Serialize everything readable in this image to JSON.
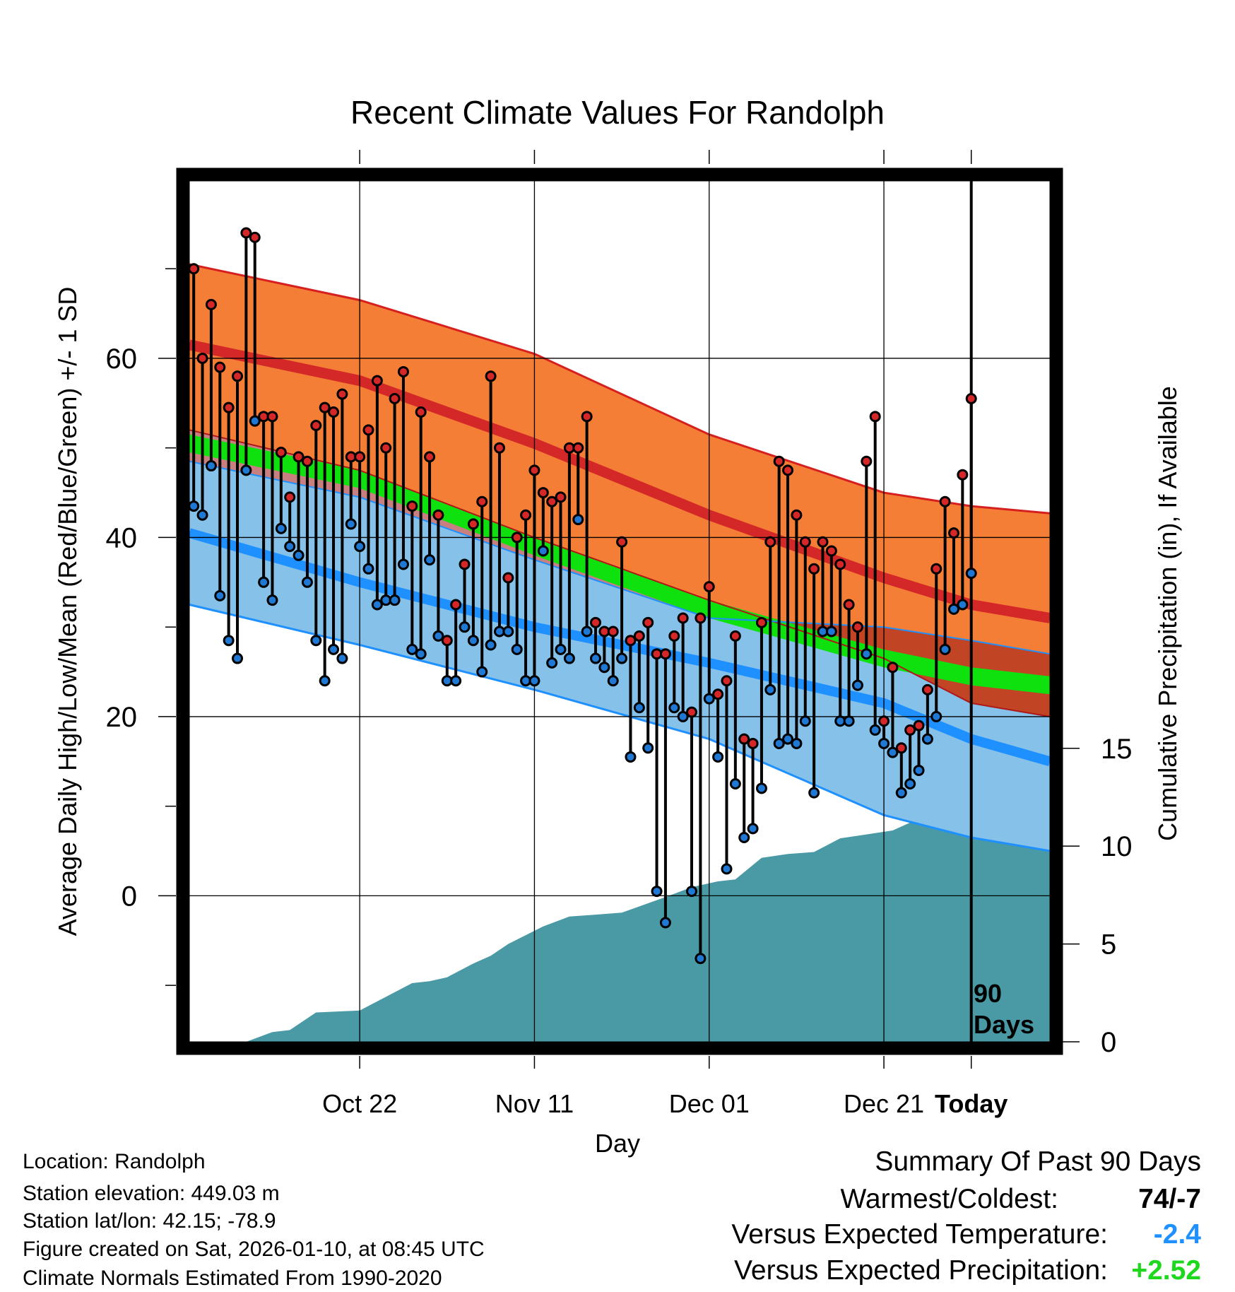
{
  "chart_data": {
    "type": "line",
    "title": "Recent Climate Values For Randolph",
    "xlabel": "Day",
    "ylabel": "Average Daily High/Low/Mean (Red/Blue/Green) +/- 1 SD",
    "y2label": "Cumulative Precipitation (in), If Available",
    "xlim": [
      -89.5,
      9
    ],
    "ylim": [
      -16.3,
      79.8
    ],
    "y2lim": [
      0,
      44
    ],
    "x_ticks": [
      -70,
      -50,
      -30,
      -10,
      0
    ],
    "x_tick_labels": [
      "Oct 22",
      "Nov 11",
      "Dec 01",
      "Dec 21",
      "Today"
    ],
    "y_ticks": [
      0,
      20,
      40,
      60
    ],
    "y_tick_labels": [
      "0",
      "20",
      "40",
      "60"
    ],
    "y2_ticks": [
      0,
      5,
      10,
      15
    ],
    "y2_tick_labels": [
      "0",
      "5",
      "10",
      "15"
    ],
    "today_label": "90 Days",
    "normals": {
      "days": [
        -89.5,
        -70,
        -50,
        -30,
        -10,
        0,
        9
      ],
      "high_upper": [
        70.5,
        66.5,
        60.5,
        51.5,
        45.0,
        43.5,
        42.7
      ],
      "high_mean": [
        61.5,
        57.5,
        50.5,
        42.5,
        35.5,
        32.5,
        31.0
      ],
      "high_lower": [
        52.0,
        47.5,
        40.0,
        33.0,
        26.5,
        21.5,
        20.0
      ],
      "mean_upper": [
        51.5,
        47.5,
        40.0,
        33.0,
        27.5,
        25.5,
        24.5
      ],
      "mean_lower": [
        49.5,
        45.5,
        38.0,
        31.0,
        25.5,
        23.5,
        22.5
      ],
      "low_upper": [
        48.5,
        44.5,
        37.5,
        31.0,
        30.0,
        28.5,
        27.0
      ],
      "low_mean": [
        40.5,
        35.0,
        30.0,
        26.0,
        21.5,
        17.5,
        15.0
      ],
      "low_lower": [
        32.5,
        28.0,
        23.0,
        17.5,
        9.0,
        6.5,
        5.0
      ]
    },
    "series": [
      {
        "name": "High",
        "color": "#d62728",
        "values": [
          70,
          60,
          66,
          59,
          54.5,
          58,
          74,
          73.5,
          53.5,
          53.5,
          49.5,
          44.5,
          49,
          48.5,
          52.5,
          54.5,
          54,
          56,
          49,
          49,
          52,
          57.5,
          50,
          55.5,
          58.5,
          43.5,
          54,
          49,
          42.5,
          28.5,
          32.5,
          37,
          41.5,
          44,
          58,
          50,
          35.5,
          40,
          42.5,
          47.5,
          45,
          44,
          44.5,
          50,
          50,
          53.5,
          30.5,
          29.5,
          29.5,
          39.5,
          28.5,
          29,
          30.5,
          27,
          27,
          29,
          31,
          20.5,
          31,
          34.5,
          22.5,
          24,
          29,
          17.5,
          17,
          30.5,
          39.5,
          48.5,
          47.5,
          42.5,
          39.5,
          36.5,
          39.5,
          38.5,
          37,
          32.5,
          30,
          48.5,
          53.5,
          19.5,
          25.5,
          16.5,
          18.5,
          19,
          23,
          36.5,
          44,
          40.5,
          47,
          55.5
        ]
      },
      {
        "name": "Low",
        "color": "#1f78d4",
        "values": [
          43.5,
          42.5,
          48,
          33.5,
          28.5,
          26.5,
          47.5,
          53,
          35,
          33,
          41,
          39,
          38,
          35,
          28.5,
          24,
          27.5,
          26.5,
          41.5,
          39,
          36.5,
          32.5,
          33,
          33,
          37,
          27.5,
          27,
          37.5,
          29,
          24,
          24,
          30,
          28.5,
          25,
          28,
          29.5,
          29.5,
          27.5,
          24,
          24,
          38.5,
          26,
          27.5,
          26.5,
          42,
          29.5,
          26.5,
          25.5,
          24,
          26.5,
          15.5,
          21,
          16.5,
          0.5,
          -3,
          21,
          20,
          0.5,
          -7,
          22,
          15.5,
          3,
          12.5,
          6.5,
          7.5,
          12,
          23,
          17,
          17.5,
          17,
          19.5,
          11.5,
          29.5,
          29.5,
          19.5,
          19.5,
          23.5,
          27,
          18.5,
          17,
          16,
          11.5,
          12.5,
          14,
          17.5,
          20,
          27.5,
          32,
          32.5,
          36
        ]
      },
      {
        "name": "Cumulative Precipitation",
        "color": "#4a9aa5",
        "days": [
          -89.5,
          -83,
          -80,
          -78,
          -75,
          -70,
          -64,
          -62,
          -60,
          -57,
          -55,
          -53,
          -49,
          -46,
          -43,
          -40,
          -35,
          -32,
          -29,
          -27,
          -24,
          -21,
          -18,
          -15,
          -12,
          -9,
          -6,
          -3,
          -1,
          1,
          3,
          9
        ],
        "values": [
          0,
          0,
          0.5,
          0.6,
          1.5,
          1.6,
          3.0,
          3.1,
          3.3,
          4.0,
          4.4,
          5.0,
          5.9,
          6.4,
          6.5,
          6.6,
          7.4,
          7.9,
          8.2,
          8.3,
          9.4,
          9.6,
          9.7,
          10.4,
          10.6,
          10.8,
          11.4,
          11.8,
          12.0,
          12.3,
          12.6,
          12.6
        ]
      }
    ]
  },
  "footer": {
    "location": "Location: Randolph",
    "elevation": "Station elevation: 449.03 m",
    "latlon": "Station lat/lon: 42.15; -78.9",
    "created": "Figure created on Sat, 2026-01-10, at 08:45 UTC",
    "normals": "Climate Normals Estimated From 1990-2020"
  },
  "summary": {
    "title": "Summary Of Past 90 Days",
    "warmest_label": "Warmest/Coldest:",
    "warmest_value": "74/-7",
    "temp_label": "Versus Expected Temperature:",
    "temp_value": "-2.4",
    "temp_color": "#1e90ff",
    "precip_label": "Versus Expected Precipitation:",
    "precip_value": "+2.52",
    "precip_color": "#1ed81e"
  }
}
